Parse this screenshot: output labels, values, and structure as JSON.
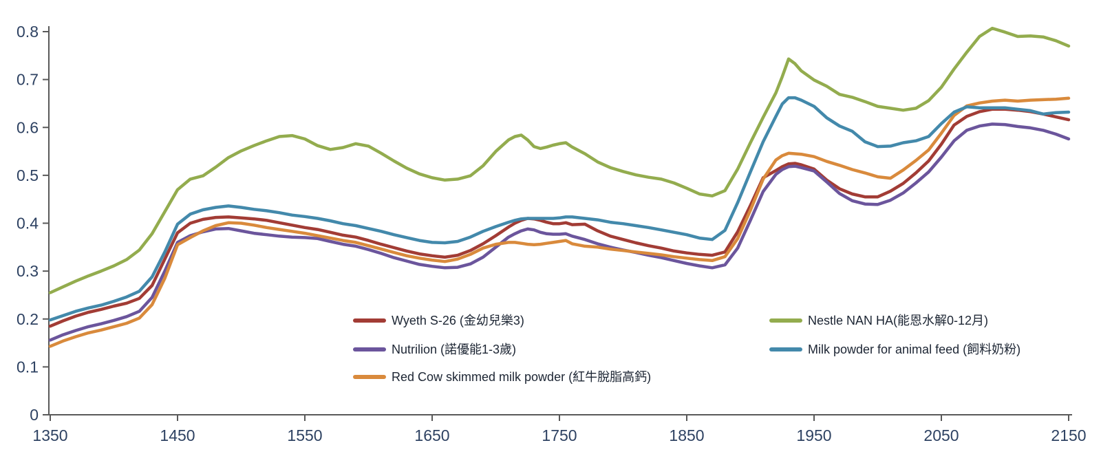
{
  "chart_data": {
    "type": "line",
    "title": "",
    "xlabel": "",
    "ylabel": "",
    "xlim": [
      1350,
      2150
    ],
    "ylim": [
      0,
      0.8
    ],
    "x_ticks": [
      1350,
      1450,
      1550,
      1650,
      1750,
      1850,
      1950,
      2050,
      2150
    ],
    "y_ticks": [
      0,
      0.1,
      0.2,
      0.3,
      0.4,
      0.5,
      0.6,
      0.7,
      0.8
    ],
    "grid": false,
    "background_color": "#ffffff",
    "axis_color": "#595959",
    "tick_label_color": "#2E4262",
    "legend_text_color": "#1C2533",
    "x": [
      1350,
      1360,
      1370,
      1380,
      1390,
      1400,
      1410,
      1420,
      1430,
      1440,
      1450,
      1460,
      1470,
      1480,
      1490,
      1500,
      1510,
      1520,
      1530,
      1540,
      1550,
      1560,
      1570,
      1580,
      1590,
      1600,
      1610,
      1620,
      1630,
      1640,
      1650,
      1660,
      1670,
      1680,
      1690,
      1700,
      1710,
      1715,
      1720,
      1725,
      1730,
      1735,
      1740,
      1745,
      1750,
      1755,
      1760,
      1770,
      1780,
      1790,
      1800,
      1810,
      1820,
      1830,
      1840,
      1850,
      1860,
      1870,
      1880,
      1890,
      1900,
      1910,
      1920,
      1925,
      1930,
      1935,
      1940,
      1950,
      1960,
      1970,
      1980,
      1990,
      2000,
      2010,
      2020,
      2030,
      2040,
      2050,
      2060,
      2070,
      2080,
      2090,
      2100,
      2110,
      2120,
      2130,
      2140,
      2150
    ],
    "series": [
      {
        "name": "Wyeth S-26 (金幼兒樂3)",
        "color": "#A23C35",
        "values": [
          0.185,
          0.196,
          0.206,
          0.214,
          0.22,
          0.227,
          0.233,
          0.243,
          0.27,
          0.325,
          0.38,
          0.4,
          0.408,
          0.412,
          0.413,
          0.411,
          0.409,
          0.406,
          0.401,
          0.396,
          0.391,
          0.387,
          0.381,
          0.375,
          0.371,
          0.364,
          0.356,
          0.349,
          0.342,
          0.336,
          0.332,
          0.329,
          0.333,
          0.343,
          0.357,
          0.374,
          0.392,
          0.4,
          0.406,
          0.41,
          0.409,
          0.406,
          0.402,
          0.399,
          0.399,
          0.401,
          0.397,
          0.398,
          0.384,
          0.373,
          0.366,
          0.359,
          0.353,
          0.348,
          0.342,
          0.338,
          0.335,
          0.333,
          0.34,
          0.382,
          0.437,
          0.495,
          0.51,
          0.518,
          0.524,
          0.525,
          0.522,
          0.513,
          0.49,
          0.472,
          0.461,
          0.455,
          0.455,
          0.467,
          0.483,
          0.505,
          0.53,
          0.565,
          0.605,
          0.623,
          0.633,
          0.638,
          0.638,
          0.636,
          0.633,
          0.628,
          0.622,
          0.616
        ]
      },
      {
        "name": "Nutrilion (諾優能1-3歲)",
        "color": "#6B559C",
        "values": [
          0.156,
          0.167,
          0.176,
          0.184,
          0.19,
          0.197,
          0.205,
          0.216,
          0.245,
          0.3,
          0.36,
          0.374,
          0.382,
          0.388,
          0.389,
          0.384,
          0.379,
          0.376,
          0.373,
          0.371,
          0.37,
          0.368,
          0.362,
          0.356,
          0.352,
          0.345,
          0.337,
          0.328,
          0.321,
          0.314,
          0.31,
          0.307,
          0.308,
          0.315,
          0.329,
          0.35,
          0.371,
          0.378,
          0.384,
          0.388,
          0.386,
          0.381,
          0.378,
          0.377,
          0.377,
          0.378,
          0.373,
          0.366,
          0.357,
          0.35,
          0.344,
          0.339,
          0.333,
          0.328,
          0.322,
          0.316,
          0.311,
          0.307,
          0.313,
          0.348,
          0.406,
          0.466,
          0.502,
          0.512,
          0.518,
          0.519,
          0.516,
          0.509,
          0.486,
          0.462,
          0.447,
          0.44,
          0.439,
          0.448,
          0.463,
          0.484,
          0.507,
          0.538,
          0.572,
          0.594,
          0.603,
          0.607,
          0.606,
          0.602,
          0.599,
          0.594,
          0.586,
          0.576
        ]
      },
      {
        "name": "Red Cow skimmed milk powder (紅牛脫脂高鈣)",
        "color": "#D98A3C",
        "values": [
          0.143,
          0.154,
          0.163,
          0.171,
          0.177,
          0.184,
          0.191,
          0.202,
          0.23,
          0.285,
          0.355,
          0.37,
          0.384,
          0.395,
          0.401,
          0.4,
          0.396,
          0.391,
          0.387,
          0.383,
          0.379,
          0.374,
          0.369,
          0.364,
          0.36,
          0.353,
          0.346,
          0.339,
          0.332,
          0.327,
          0.323,
          0.32,
          0.325,
          0.335,
          0.348,
          0.356,
          0.36,
          0.36,
          0.358,
          0.356,
          0.355,
          0.356,
          0.358,
          0.36,
          0.362,
          0.364,
          0.357,
          0.352,
          0.35,
          0.346,
          0.343,
          0.34,
          0.337,
          0.334,
          0.33,
          0.327,
          0.324,
          0.322,
          0.33,
          0.368,
          0.427,
          0.492,
          0.532,
          0.541,
          0.546,
          0.545,
          0.544,
          0.539,
          0.529,
          0.521,
          0.512,
          0.505,
          0.497,
          0.494,
          0.511,
          0.531,
          0.553,
          0.588,
          0.625,
          0.645,
          0.651,
          0.655,
          0.657,
          0.655,
          0.657,
          0.658,
          0.659,
          0.661
        ]
      },
      {
        "name": "Nestle NAN HA(能恩水解0-12月)",
        "color": "#93AC4E",
        "values": [
          0.255,
          0.267,
          0.279,
          0.29,
          0.3,
          0.311,
          0.324,
          0.344,
          0.378,
          0.424,
          0.47,
          0.492,
          0.499,
          0.517,
          0.537,
          0.551,
          0.562,
          0.572,
          0.581,
          0.583,
          0.576,
          0.562,
          0.554,
          0.558,
          0.566,
          0.561,
          0.546,
          0.53,
          0.515,
          0.503,
          0.495,
          0.49,
          0.492,
          0.499,
          0.52,
          0.55,
          0.574,
          0.581,
          0.584,
          0.574,
          0.56,
          0.556,
          0.559,
          0.563,
          0.566,
          0.568,
          0.559,
          0.545,
          0.528,
          0.516,
          0.508,
          0.501,
          0.496,
          0.492,
          0.484,
          0.473,
          0.461,
          0.457,
          0.468,
          0.513,
          0.568,
          0.621,
          0.672,
          0.706,
          0.743,
          0.733,
          0.718,
          0.699,
          0.686,
          0.669,
          0.663,
          0.654,
          0.644,
          0.64,
          0.636,
          0.64,
          0.656,
          0.684,
          0.722,
          0.757,
          0.79,
          0.807,
          0.799,
          0.79,
          0.791,
          0.789,
          0.781,
          0.77
        ]
      },
      {
        "name": "Milk powder for animal feed (飼料奶粉)",
        "color": "#4389AB",
        "values": [
          0.198,
          0.207,
          0.216,
          0.223,
          0.229,
          0.237,
          0.246,
          0.258,
          0.288,
          0.34,
          0.398,
          0.419,
          0.428,
          0.433,
          0.436,
          0.433,
          0.429,
          0.426,
          0.422,
          0.417,
          0.414,
          0.41,
          0.405,
          0.399,
          0.395,
          0.389,
          0.383,
          0.376,
          0.37,
          0.364,
          0.36,
          0.359,
          0.362,
          0.371,
          0.383,
          0.393,
          0.402,
          0.406,
          0.409,
          0.41,
          0.41,
          0.41,
          0.41,
          0.41,
          0.411,
          0.413,
          0.413,
          0.41,
          0.407,
          0.402,
          0.399,
          0.395,
          0.391,
          0.386,
          0.381,
          0.376,
          0.369,
          0.366,
          0.385,
          0.443,
          0.507,
          0.57,
          0.623,
          0.649,
          0.662,
          0.662,
          0.657,
          0.644,
          0.62,
          0.603,
          0.592,
          0.57,
          0.56,
          0.561,
          0.568,
          0.572,
          0.581,
          0.608,
          0.632,
          0.643,
          0.641,
          0.641,
          0.641,
          0.638,
          0.635,
          0.628,
          0.631,
          0.632
        ]
      }
    ],
    "legend": {
      "position": "inside-bottom",
      "columns": [
        {
          "series_indexes": [
            0,
            1,
            2
          ]
        },
        {
          "series_indexes": [
            3,
            4
          ]
        }
      ]
    }
  }
}
